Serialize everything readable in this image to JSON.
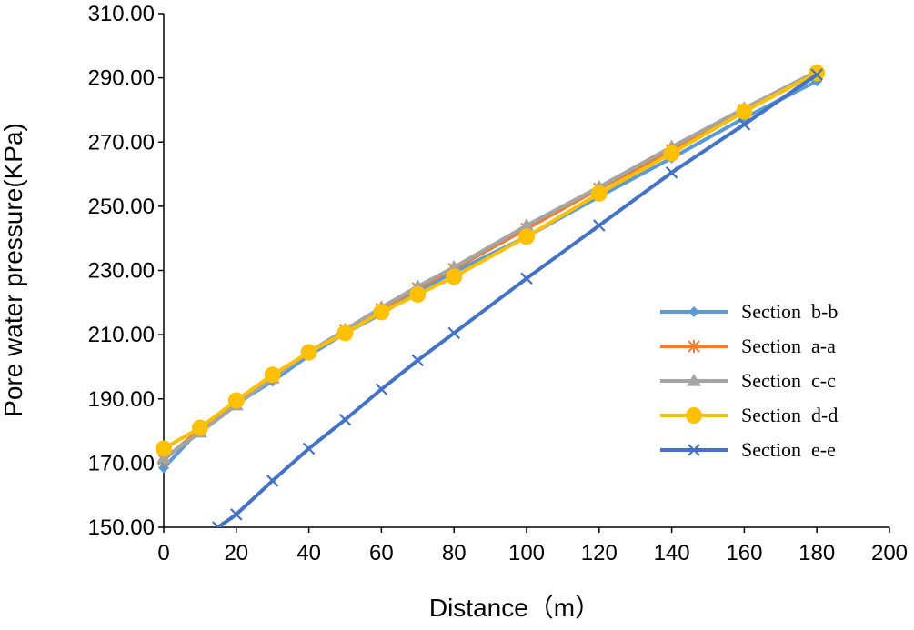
{
  "chart_data": {
    "type": "line",
    "title": "",
    "xlabel": "Distance（m）",
    "ylabel": "Pore water pressure(KPa)",
    "xlim": [
      0,
      200
    ],
    "ylim": [
      150,
      310
    ],
    "xticks": [
      0,
      20,
      40,
      60,
      80,
      100,
      120,
      140,
      160,
      180,
      200
    ],
    "yticks": [
      150,
      170,
      190,
      210,
      230,
      250,
      270,
      290,
      310
    ],
    "ytick_labels": [
      "150.00",
      "170.00",
      "190.00",
      "210.00",
      "230.00",
      "250.00",
      "270.00",
      "290.00",
      "310.00"
    ],
    "grid": false,
    "legend_position": "right",
    "series": [
      {
        "name": "Section b-b",
        "legend_label": "Section  b-b",
        "color": "#5B9BD5",
        "marker": "diamond",
        "x": [
          0,
          10,
          20,
          30,
          40,
          50,
          60,
          70,
          80,
          100,
          120,
          140,
          160,
          180
        ],
        "y": [
          168.5,
          180.5,
          188.5,
          195.5,
          203.5,
          210.5,
          216.5,
          223.5,
          229.5,
          240.5,
          253.0,
          265.0,
          277.5,
          289.0
        ]
      },
      {
        "name": "Section a-a",
        "legend_label": "Section  a-a",
        "color": "#ED7D31",
        "marker": "asterisk",
        "x": [
          0,
          10,
          20,
          30,
          40,
          50,
          60,
          70,
          80,
          100,
          120,
          140,
          160,
          180
        ],
        "y": [
          171.0,
          180.5,
          188.5,
          196.5,
          204.5,
          211.5,
          218.0,
          224.5,
          230.5,
          243.0,
          255.5,
          267.5,
          280.0,
          291.5
        ]
      },
      {
        "name": "Section c-c",
        "legend_label": "Section  c-c",
        "color": "#A5A5A5",
        "marker": "triangle",
        "x": [
          0,
          10,
          20,
          30,
          40,
          50,
          60,
          70,
          80,
          100,
          120,
          140,
          160,
          180
        ],
        "y": [
          171.5,
          179.5,
          188.0,
          196.5,
          204.5,
          211.5,
          218.5,
          225.0,
          231.0,
          244.0,
          256.0,
          268.5,
          280.5,
          292.0
        ]
      },
      {
        "name": "Section d-d",
        "legend_label": "Section  d-d",
        "color": "#FFC000",
        "marker": "circle",
        "x": [
          0,
          10,
          20,
          30,
          40,
          50,
          60,
          70,
          80,
          100,
          120,
          140,
          160,
          180
        ],
        "y": [
          174.5,
          181.0,
          189.5,
          197.5,
          204.5,
          210.5,
          217.0,
          222.5,
          228.0,
          240.5,
          254.0,
          266.5,
          279.5,
          291.5
        ]
      },
      {
        "name": "Section e-e",
        "legend_label": "Section  e-e",
        "color": "#4472C4",
        "marker": "x",
        "x": [
          15,
          20,
          30,
          40,
          50,
          60,
          70,
          80,
          100,
          120,
          140,
          160,
          180
        ],
        "y": [
          150.0,
          154.0,
          164.5,
          174.5,
          183.5,
          193.0,
          202.0,
          210.5,
          227.5,
          244.0,
          260.5,
          275.5,
          291.0
        ]
      }
    ]
  }
}
